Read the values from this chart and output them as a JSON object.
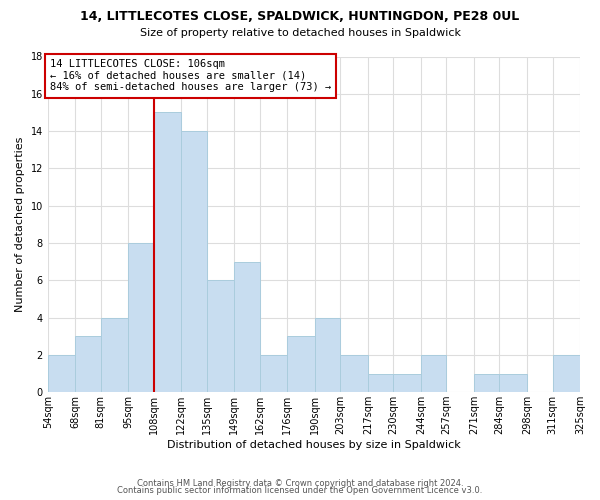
{
  "title": "14, LITTLECOTES CLOSE, SPALDWICK, HUNTINGDON, PE28 0UL",
  "subtitle": "Size of property relative to detached houses in Spaldwick",
  "xlabel": "Distribution of detached houses by size in Spaldwick",
  "ylabel": "Number of detached properties",
  "footer_line1": "Contains HM Land Registry data © Crown copyright and database right 2024.",
  "footer_line2": "Contains public sector information licensed under the Open Government Licence v3.0.",
  "bin_edges": [
    54,
    68,
    81,
    95,
    108,
    122,
    135,
    149,
    162,
    176,
    190,
    203,
    217,
    230,
    244,
    257,
    271,
    284,
    298,
    311,
    325
  ],
  "all_heights": [
    2,
    3,
    4,
    8,
    15,
    14,
    6,
    7,
    2,
    3,
    4,
    2,
    1,
    1,
    2,
    0,
    1,
    1,
    0,
    2
  ],
  "bar_color": "#c8ddf0",
  "bar_edgecolor": "#aaccdd",
  "vline_x": 108,
  "vline_color": "#cc0000",
  "ylim": [
    0,
    18
  ],
  "yticks": [
    0,
    2,
    4,
    6,
    8,
    10,
    12,
    14,
    16,
    18
  ],
  "annotation_line1": "14 LITTLECOTES CLOSE: 106sqm",
  "annotation_line2": "← 16% of detached houses are smaller (14)",
  "annotation_line3": "84% of semi-detached houses are larger (73) →",
  "background_color": "#ffffff",
  "grid_color": "#dddddd",
  "title_fontsize": 9,
  "subtitle_fontsize": 8,
  "axis_label_fontsize": 8,
  "tick_fontsize": 7,
  "annotation_fontsize": 7.5,
  "footer_fontsize": 6
}
